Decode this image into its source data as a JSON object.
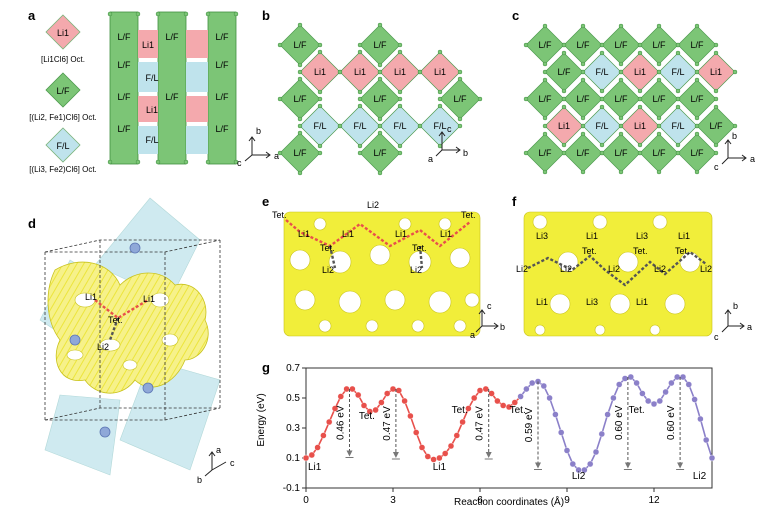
{
  "panels": {
    "a": {
      "letter": "a",
      "legend": [
        {
          "label": "Li1",
          "caption": "[Li1Cl6] Oct."
        },
        {
          "label": "L/F",
          "caption": "[(Li2, Fe1)Cl6] Oct."
        },
        {
          "label": "F/L",
          "caption": "[(Li3, Fe2)Cl6] Oct."
        }
      ],
      "stack_labels": [
        "L/F",
        "Li1",
        "F/L",
        "Li1",
        "F/L"
      ],
      "axes": {
        "up": "b",
        "right": "a",
        "left": "c"
      }
    },
    "b": {
      "letter": "b",
      "rows": [
        [
          "L/F",
          "",
          "L/F",
          ""
        ],
        [
          "Li1",
          "Li1",
          "Li1",
          "Li1"
        ],
        [
          "L/F",
          "",
          "L/F",
          "",
          "L/F"
        ],
        [
          "F/L",
          "F/L",
          "F/L",
          "F/L"
        ],
        [
          "L/F",
          "",
          "L/F",
          ""
        ]
      ],
      "axes": {
        "up": "c",
        "right": "b",
        "left": "a"
      }
    },
    "c": {
      "letter": "c",
      "rows": [
        [
          "L/F",
          "L/F",
          "L/F",
          "L/F",
          "L/F"
        ],
        [
          "L/F",
          "F/L",
          "Li1",
          "F/L",
          "Li1"
        ],
        [
          "L/F",
          "L/F",
          "L/F",
          "L/F",
          "L/F"
        ],
        [
          "Li1",
          "F/L",
          "Li1",
          "F/L",
          "L/F"
        ],
        [
          "L/F",
          "L/F",
          "L/F",
          "L/F",
          "L/F"
        ]
      ],
      "axes": {
        "up": "b",
        "right": "a",
        "left": "c"
      }
    },
    "d": {
      "letter": "d",
      "labels": {
        "li1_left": "Li1",
        "li1_right": "Li1",
        "tet": "Tet.",
        "li2": "Li2"
      },
      "axes": {
        "up": "a",
        "right": "c",
        "left": "b"
      }
    },
    "e": {
      "letter": "e",
      "labels": [
        "Li2",
        "Tet.",
        "Tet.",
        "Li1",
        "Li1",
        "Tet.",
        "Li1",
        "Li1",
        "Tet.",
        "Li2",
        "Li2"
      ],
      "axes": {
        "up": "c",
        "right": "b",
        "left": "a"
      }
    },
    "f": {
      "letter": "f",
      "labels": [
        "Li3",
        "Li1",
        "Li3",
        "Li1",
        "Tet.",
        "Tet.",
        "Tet.",
        "Li2",
        "Li2",
        "Li2",
        "Li2",
        "Li2",
        "Li1",
        "Li3",
        "Li1"
      ],
      "axes": {
        "up": "b",
        "right": "a",
        "left": "c"
      }
    },
    "g": {
      "letter": "g"
    }
  },
  "colors": {
    "green": "#7cc576",
    "pink": "#f4a9ad",
    "blue": "#bfe3ec",
    "yellow": "#f1ee3a",
    "red_path": "#e8504b",
    "purple_path": "#8b80c9"
  },
  "chart_data": {
    "type": "line",
    "xlabel": "Reaction coordinates (Å)",
    "ylabel": "Energy (eV)",
    "xlim": [
      0,
      14
    ],
    "ylim": [
      -0.1,
      0.7
    ],
    "xticks": [
      "0",
      "3",
      "6",
      "9",
      "12"
    ],
    "yticks": [
      "-0.1",
      "0.1",
      "0.3",
      "0.5",
      "0.7"
    ],
    "grid": false,
    "series": [
      {
        "name": "",
        "color": "#e8504b",
        "points": [
          [
            0,
            0.1
          ],
          [
            0.2,
            0.12
          ],
          [
            0.4,
            0.17
          ],
          [
            0.6,
            0.25
          ],
          [
            0.8,
            0.34
          ],
          [
            1.0,
            0.43
          ],
          [
            1.2,
            0.51
          ],
          [
            1.4,
            0.56
          ],
          [
            1.6,
            0.56
          ],
          [
            1.8,
            0.52
          ],
          [
            2.0,
            0.45
          ],
          [
            2.2,
            0.41
          ],
          [
            2.4,
            0.42
          ],
          [
            2.6,
            0.47
          ],
          [
            2.8,
            0.53
          ],
          [
            3.0,
            0.56
          ],
          [
            3.2,
            0.55
          ],
          [
            3.4,
            0.48
          ],
          [
            3.6,
            0.38
          ],
          [
            3.8,
            0.27
          ],
          [
            4.0,
            0.17
          ],
          [
            4.2,
            0.11
          ],
          [
            4.4,
            0.09
          ],
          [
            4.6,
            0.1
          ],
          [
            4.8,
            0.13
          ],
          [
            5.0,
            0.18
          ],
          [
            5.2,
            0.25
          ],
          [
            5.4,
            0.34
          ],
          [
            5.6,
            0.43
          ],
          [
            5.8,
            0.5
          ],
          [
            6.0,
            0.55
          ],
          [
            6.2,
            0.56
          ],
          [
            6.4,
            0.53
          ],
          [
            6.6,
            0.48
          ],
          [
            6.8,
            0.45
          ],
          [
            7.0,
            0.44
          ],
          [
            7.2,
            0.47
          ],
          [
            7.4,
            0.51
          ]
        ]
      },
      {
        "name": "",
        "color": "#8b80c9",
        "points": [
          [
            7.4,
            0.51
          ],
          [
            7.6,
            0.56
          ],
          [
            7.8,
            0.6
          ],
          [
            8.0,
            0.61
          ],
          [
            8.2,
            0.58
          ],
          [
            8.4,
            0.5
          ],
          [
            8.6,
            0.39
          ],
          [
            8.8,
            0.27
          ],
          [
            9.0,
            0.15
          ],
          [
            9.2,
            0.06
          ],
          [
            9.4,
            0.02
          ],
          [
            9.6,
            0.02
          ],
          [
            9.8,
            0.06
          ],
          [
            10.0,
            0.14
          ],
          [
            10.2,
            0.26
          ],
          [
            10.4,
            0.39
          ],
          [
            10.6,
            0.5
          ],
          [
            10.8,
            0.59
          ],
          [
            11.0,
            0.63
          ],
          [
            11.2,
            0.64
          ],
          [
            11.4,
            0.6
          ],
          [
            11.6,
            0.53
          ],
          [
            11.8,
            0.48
          ],
          [
            12.0,
            0.46
          ],
          [
            12.2,
            0.48
          ],
          [
            12.4,
            0.54
          ],
          [
            12.6,
            0.6
          ],
          [
            12.8,
            0.64
          ],
          [
            13.0,
            0.64
          ],
          [
            13.2,
            0.59
          ],
          [
            13.4,
            0.49
          ],
          [
            13.6,
            0.36
          ],
          [
            13.8,
            0.22
          ],
          [
            14.0,
            0.1
          ]
        ]
      }
    ],
    "barriers": [
      {
        "label": "0.46 eV",
        "x": 1.5,
        "top": 0.56,
        "bottom": 0.11
      },
      {
        "label": "0.47 eV",
        "x": 3.1,
        "top": 0.56,
        "bottom": 0.1
      },
      {
        "label": "0.47 eV",
        "x": 6.3,
        "top": 0.56,
        "bottom": 0.1
      },
      {
        "label": "0.59 eV",
        "x": 8.0,
        "top": 0.61,
        "bottom": 0.03
      },
      {
        "label": "0.60 eV",
        "x": 11.1,
        "top": 0.64,
        "bottom": 0.03
      },
      {
        "label": "0.60 eV",
        "x": 12.9,
        "top": 0.64,
        "bottom": 0.03
      }
    ],
    "annotations": [
      {
        "text": "Li1",
        "x": 0.0,
        "y": 0.02
      },
      {
        "text": "Tet.",
        "x": 2.1,
        "y": 0.36
      },
      {
        "text": "Tet.",
        "x": 5.3,
        "y": 0.4
      },
      {
        "text": "Li1",
        "x": 4.6,
        "y": 0.02
      },
      {
        "text": "Tet.",
        "x": 7.3,
        "y": 0.4
      },
      {
        "text": "Li2",
        "x": 9.4,
        "y": -0.04
      },
      {
        "text": "Tet.",
        "x": 11.4,
        "y": 0.4
      },
      {
        "text": "Li2",
        "x": 13.8,
        "y": -0.04
      }
    ]
  }
}
